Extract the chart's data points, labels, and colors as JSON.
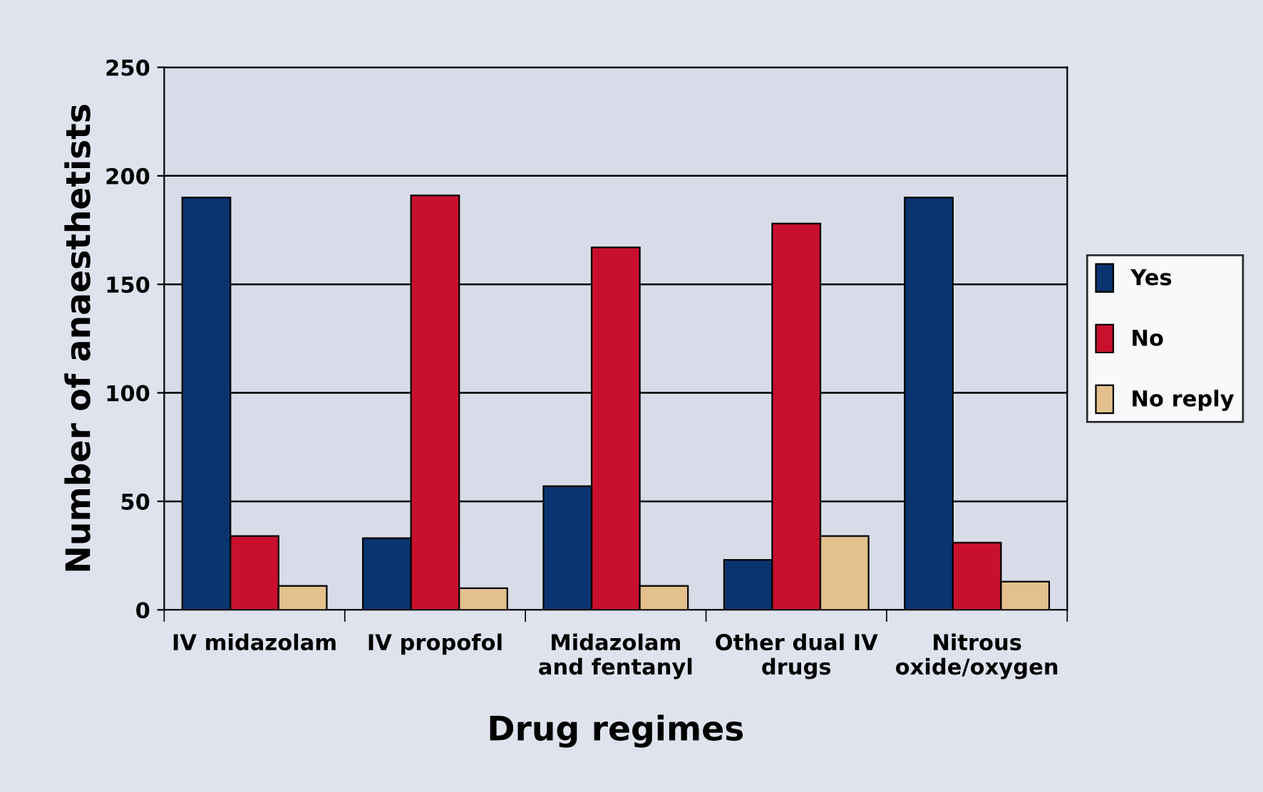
{
  "chart_data": {
    "type": "bar",
    "xlabel": "Drug regimes",
    "ylabel": "Number of anaesthetists",
    "categories": [
      "IV midazolam",
      "IV propofol",
      "Midazolam\nand fentanyl",
      "Other dual IV\ndrugs",
      "Nitrous\noxide/oxygen"
    ],
    "series": [
      {
        "name": "Yes",
        "color": "#0a3470",
        "values": [
          190,
          33,
          57,
          23,
          190
        ]
      },
      {
        "name": "No",
        "color": "#c8102e",
        "values": [
          34,
          191,
          167,
          178,
          31
        ]
      },
      {
        "name": "No reply",
        "color": "#e3c08e",
        "values": [
          11,
          10,
          11,
          34,
          13
        ]
      }
    ],
    "ylim": [
      0,
      250
    ],
    "yticks": [
      0,
      50,
      100,
      150,
      200,
      250
    ],
    "grid": "y",
    "legend": "right"
  }
}
